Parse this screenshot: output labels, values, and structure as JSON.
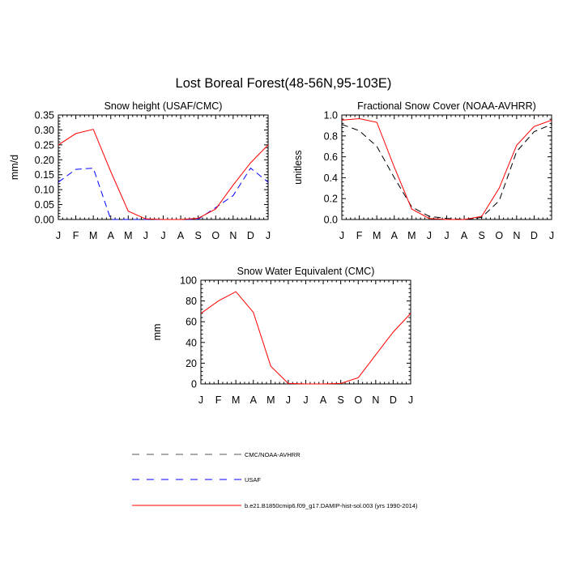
{
  "figure_title": "Lost Boreal Forest(48-56N,95-103E)",
  "legend": [
    {
      "label": "CMC/NOAA-AVHRR",
      "color": "#000000",
      "dash": "dashed"
    },
    {
      "label": "USAF",
      "color": "#0000ff",
      "dash": "dashed"
    },
    {
      "label": "b.e21.B1850cmip6.f09_g17.DAMIP-hist-sol.003 (yrs 1990-2014)",
      "color": "#ff0000",
      "dash": "solid"
    }
  ],
  "chart_data": [
    {
      "type": "line",
      "title": "Snow height (USAF/CMC)",
      "xlabel": "",
      "ylabel": "mm/d",
      "categories": [
        "J",
        "F",
        "M",
        "A",
        "M",
        "J",
        "J",
        "A",
        "S",
        "O",
        "N",
        "D",
        "J"
      ],
      "ylim": [
        0,
        0.35
      ],
      "yticks": [
        "0.00",
        "0.05",
        "0.10",
        "0.15",
        "0.20",
        "0.25",
        "0.30",
        "0.35"
      ],
      "series": [
        {
          "legend_ref": 0,
          "values": [
            0.0,
            0.0,
            0.0,
            0.0,
            0.0,
            0.0,
            0.0,
            0.0,
            0.0,
            0.0,
            0.0,
            0.0,
            0.0
          ]
        },
        {
          "legend_ref": 1,
          "values": [
            0.125,
            0.168,
            0.172,
            0.0,
            0.0,
            0.0,
            0.0,
            0.0,
            0.001,
            0.04,
            0.08,
            0.172,
            0.125
          ]
        },
        {
          "legend_ref": 2,
          "values": [
            0.25,
            0.288,
            0.302,
            0.16,
            0.028,
            0.002,
            0.0,
            0.0,
            0.004,
            0.035,
            0.115,
            0.19,
            0.25
          ]
        }
      ]
    },
    {
      "type": "line",
      "title": "Fractional Snow Cover (NOAA-AVHRR)",
      "xlabel": "",
      "ylabel": "unitless",
      "categories": [
        "J",
        "F",
        "M",
        "A",
        "M",
        "J",
        "J",
        "A",
        "S",
        "O",
        "N",
        "D",
        "J"
      ],
      "ylim": [
        0,
        1.0
      ],
      "yticks": [
        "0.0",
        "0.2",
        "0.4",
        "0.6",
        "0.8",
        "1.0"
      ],
      "series": [
        {
          "legend_ref": 0,
          "values": [
            0.91,
            0.85,
            0.7,
            0.4,
            0.12,
            0.03,
            0.01,
            0.0,
            0.02,
            0.18,
            0.65,
            0.84,
            0.91
          ]
        },
        {
          "legend_ref": 2,
          "values": [
            0.95,
            0.965,
            0.93,
            0.5,
            0.1,
            0.01,
            0.0,
            0.0,
            0.03,
            0.3,
            0.71,
            0.89,
            0.95
          ]
        }
      ]
    },
    {
      "type": "line",
      "title": "Snow Water Equivalent (CMC)",
      "xlabel": "",
      "ylabel": "mm",
      "categories": [
        "J",
        "F",
        "M",
        "A",
        "M",
        "J",
        "J",
        "A",
        "S",
        "O",
        "N",
        "D",
        "J"
      ],
      "ylim": [
        0,
        100
      ],
      "yticks": [
        "0",
        "20",
        "40",
        "60",
        "80",
        "100"
      ],
      "series": [
        {
          "legend_ref": 0,
          "values": [
            0,
            0,
            0,
            0,
            0,
            0,
            0,
            0,
            0,
            0,
            0,
            0,
            0
          ]
        },
        {
          "legend_ref": 2,
          "values": [
            68,
            80,
            89,
            69,
            17,
            0.5,
            0,
            0,
            0.5,
            6,
            28,
            50,
            68
          ]
        }
      ]
    }
  ]
}
